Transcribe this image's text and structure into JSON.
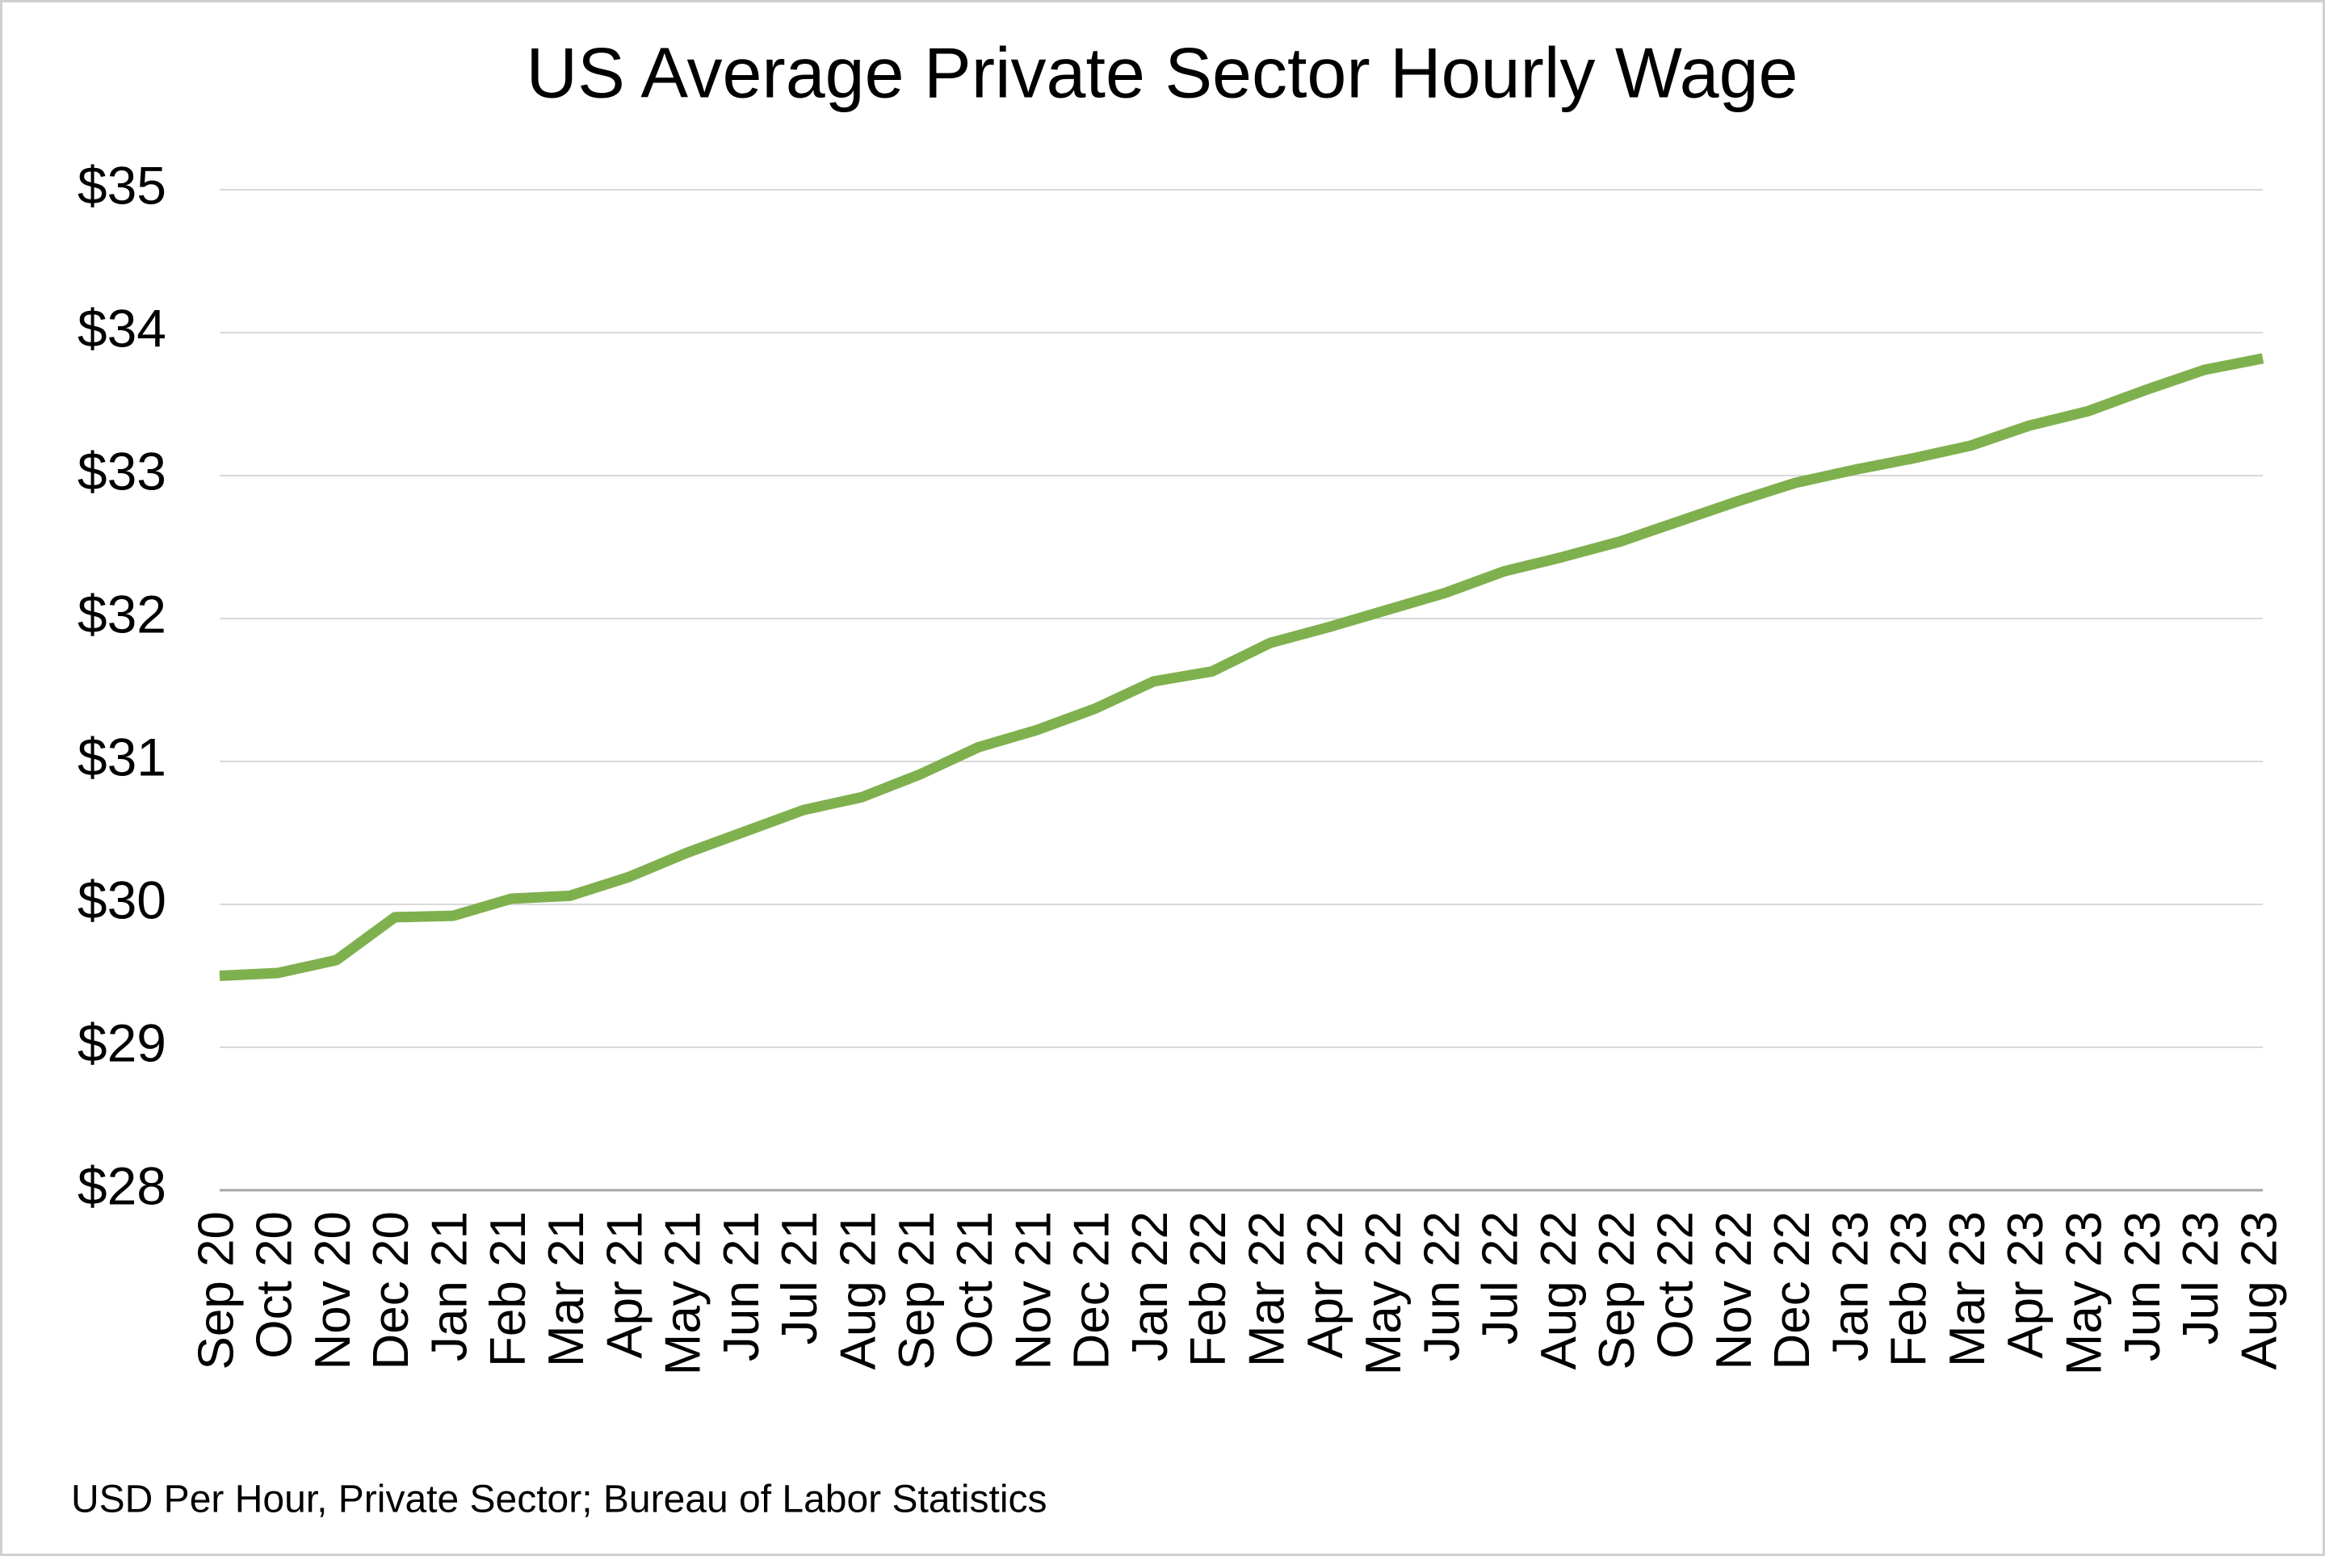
{
  "chart_data": {
    "type": "line",
    "title": "US Average Private Sector Hourly Wage",
    "note": "USD Per Hour, Private Sector; Bureau of Labor Statistics",
    "categories": [
      "Sep 20",
      "Oct 20",
      "Nov 20",
      "Dec 20",
      "Jan 21",
      "Feb 21",
      "Mar 21",
      "Apr 21",
      "May 21",
      "Jun 21",
      "Jul 21",
      "Aug 21",
      "Sep 21",
      "Oct 21",
      "Nov 21",
      "Dec 21",
      "Jan 22",
      "Feb 22",
      "Mar 22",
      "Apr 22",
      "May 22",
      "Jun 22",
      "Jul 22",
      "Aug 22",
      "Sep 22",
      "Oct 22",
      "Nov 22",
      "Dec 22",
      "Jan 23",
      "Feb 23",
      "Mar 23",
      "Apr 23",
      "May 23",
      "Jun 23",
      "Jul 23",
      "Aug 23"
    ],
    "series": [
      {
        "color": "#7fb04e",
        "values": [
          29.5,
          29.52,
          29.61,
          29.91,
          29.92,
          30.04,
          30.06,
          30.19,
          30.36,
          30.51,
          30.66,
          30.75,
          30.91,
          31.1,
          31.22,
          31.37,
          31.56,
          31.63,
          31.83,
          31.94,
          32.06,
          32.18,
          32.33,
          32.43,
          32.54,
          32.68,
          32.82,
          32.95,
          33.04,
          33.12,
          33.21,
          33.35,
          33.45,
          33.6,
          33.74,
          33.82
        ]
      }
    ],
    "ylim": [
      28,
      35
    ],
    "yticks": [
      {
        "value": 28,
        "label": "$28"
      },
      {
        "value": 29,
        "label": "$29"
      },
      {
        "value": 30,
        "label": "$30"
      },
      {
        "value": 31,
        "label": "$31"
      },
      {
        "value": 32,
        "label": "$32"
      },
      {
        "value": 33,
        "label": "$33"
      },
      {
        "value": 34,
        "label": "$34"
      },
      {
        "value": 35,
        "label": "$35"
      }
    ],
    "grid": true
  }
}
